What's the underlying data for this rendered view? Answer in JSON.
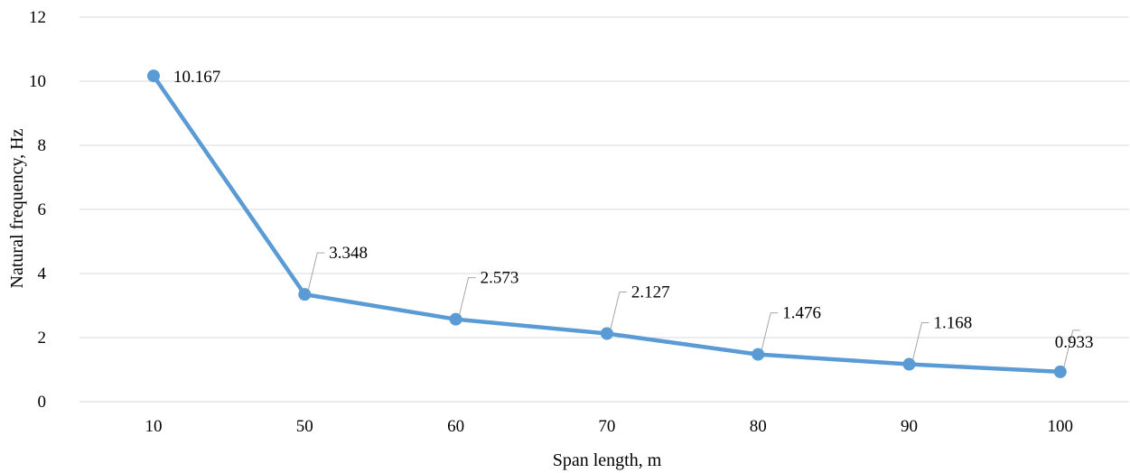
{
  "chart_data": {
    "type": "line",
    "categories": [
      "10",
      "50",
      "60",
      "70",
      "80",
      "90",
      "100"
    ],
    "series": [
      {
        "values": [
          10.167,
          3.348,
          2.573,
          2.127,
          1.476,
          1.168,
          0.933
        ]
      }
    ],
    "data_labels": [
      "10.167",
      "3.348",
      "2.573",
      "2.127",
      "1.476",
      "1.168",
      "0.933"
    ],
    "xlabel": "Span length, m",
    "ylabel": "Natural frequency, Hz",
    "ylim": [
      0,
      12
    ],
    "yticks": [
      "0",
      "2",
      "4",
      "6",
      "8",
      "10",
      "12"
    ],
    "grid": true,
    "legend": "none",
    "colors": {
      "series": "#5b9bd5",
      "grid": "#d9d9d9",
      "leader": "#a6a6a6"
    }
  }
}
